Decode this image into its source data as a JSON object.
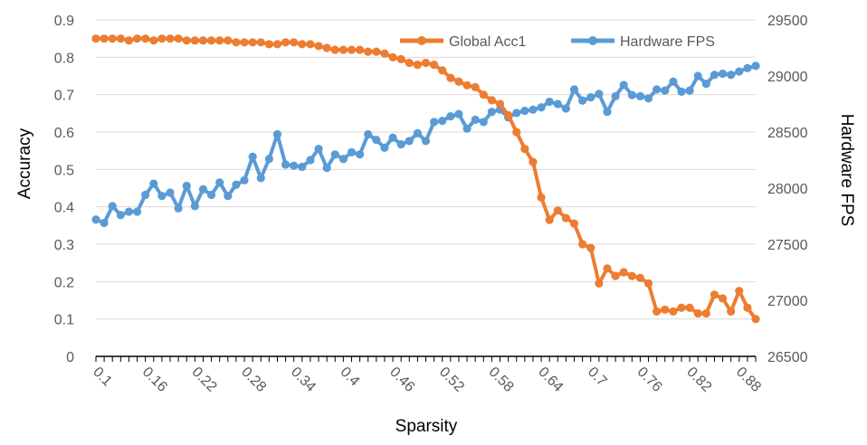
{
  "chart_data": {
    "type": "line",
    "xlabel": "Sparsity",
    "ylabel": "Accuracy",
    "y2label": "Hardware FPS",
    "ylim": [
      0,
      0.9
    ],
    "y2lim": [
      26500,
      29500
    ],
    "xlim": [
      0.1,
      0.9
    ],
    "x_tick_labels": [
      "0.1",
      "0.16",
      "0.22",
      "0.28",
      "0.34",
      "0.4",
      "0.46",
      "0.52",
      "0.58",
      "0.64",
      "0.7",
      "0.76",
      "0.82",
      "0.88"
    ],
    "x_tick_values": [
      0.1,
      0.16,
      0.22,
      0.28,
      0.34,
      0.4,
      0.46,
      0.52,
      0.58,
      0.64,
      0.7,
      0.76,
      0.82,
      0.88
    ],
    "y_tick_labels": [
      "0",
      "0.1",
      "0.2",
      "0.3",
      "0.4",
      "0.5",
      "0.6",
      "0.7",
      "0.8",
      "0.9"
    ],
    "y_tick_values": [
      0,
      0.1,
      0.2,
      0.3,
      0.4,
      0.5,
      0.6,
      0.7,
      0.8,
      0.9
    ],
    "y2_tick_labels": [
      "26500",
      "27000",
      "27500",
      "28000",
      "28500",
      "29000",
      "29500"
    ],
    "y2_tick_values": [
      26500,
      27000,
      27500,
      28000,
      28500,
      29000,
      29500
    ],
    "grid": "horizontal",
    "legend_position": "top-right",
    "x": [
      0.1,
      0.11,
      0.12,
      0.13,
      0.14,
      0.15,
      0.16,
      0.17,
      0.18,
      0.19,
      0.2,
      0.21,
      0.22,
      0.23,
      0.24,
      0.25,
      0.26,
      0.27,
      0.28,
      0.29,
      0.3,
      0.31,
      0.32,
      0.33,
      0.34,
      0.35,
      0.36,
      0.37,
      0.38,
      0.39,
      0.4,
      0.41,
      0.42,
      0.43,
      0.44,
      0.45,
      0.46,
      0.47,
      0.48,
      0.49,
      0.5,
      0.51,
      0.52,
      0.53,
      0.54,
      0.55,
      0.56,
      0.57,
      0.58,
      0.59,
      0.6,
      0.61,
      0.62,
      0.63,
      0.64,
      0.65,
      0.66,
      0.67,
      0.68,
      0.69,
      0.7,
      0.71,
      0.72,
      0.73,
      0.74,
      0.75,
      0.76,
      0.77,
      0.78,
      0.79,
      0.8,
      0.81,
      0.82,
      0.83,
      0.84,
      0.85,
      0.86,
      0.87,
      0.88,
      0.89,
      0.9
    ],
    "series": [
      {
        "name": "Global Acc1",
        "color": "#ED7D31",
        "axis": "left",
        "values": [
          0.85,
          0.85,
          0.85,
          0.85,
          0.845,
          0.85,
          0.85,
          0.845,
          0.85,
          0.85,
          0.85,
          0.845,
          0.845,
          0.845,
          0.845,
          0.845,
          0.845,
          0.84,
          0.84,
          0.84,
          0.84,
          0.835,
          0.835,
          0.84,
          0.84,
          0.835,
          0.835,
          0.83,
          0.825,
          0.82,
          0.82,
          0.82,
          0.82,
          0.815,
          0.815,
          0.81,
          0.8,
          0.795,
          0.785,
          0.78,
          0.785,
          0.78,
          0.765,
          0.745,
          0.735,
          0.725,
          0.72,
          0.7,
          0.685,
          0.675,
          0.645,
          0.6,
          0.555,
          0.52,
          0.425,
          0.365,
          0.39,
          0.37,
          0.355,
          0.3,
          0.29,
          0.195,
          0.235,
          0.215,
          0.225,
          0.215,
          0.21,
          0.195,
          0.12,
          0.125,
          0.12,
          0.13,
          0.13,
          0.115,
          0.115,
          0.165,
          0.155,
          0.12,
          0.175,
          0.13,
          0.1
        ]
      },
      {
        "name": "Hardware FPS",
        "color": "#5B9BD5",
        "axis": "right",
        "values": [
          27720,
          27690,
          27840,
          27760,
          27790,
          27790,
          27940,
          28040,
          27930,
          27960,
          27820,
          28020,
          27840,
          27990,
          27940,
          28050,
          27930,
          28030,
          28070,
          28280,
          28090,
          28260,
          28480,
          28210,
          28200,
          28190,
          28250,
          28350,
          28180,
          28300,
          28260,
          28320,
          28300,
          28480,
          28430,
          28360,
          28450,
          28390,
          28420,
          28490,
          28420,
          28590,
          28600,
          28640,
          28660,
          28530,
          28610,
          28590,
          28680,
          28700,
          28630,
          28670,
          28690,
          28700,
          28720,
          28770,
          28750,
          28710,
          28880,
          28780,
          28810,
          28840,
          28680,
          28820,
          28920,
          28830,
          28820,
          28800,
          28880,
          28870,
          28950,
          28860,
          28870,
          29000,
          28930,
          29010,
          29020,
          29010,
          29040,
          29070,
          29090
        ]
      }
    ]
  }
}
